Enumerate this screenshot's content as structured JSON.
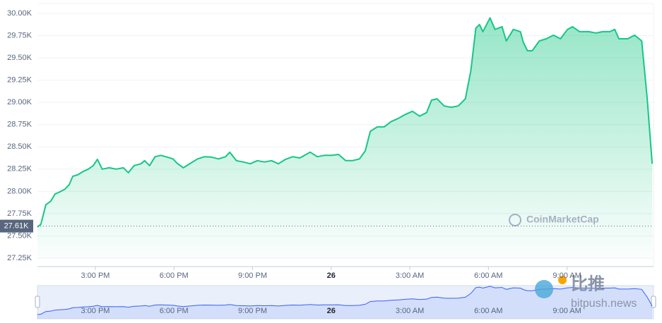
{
  "chart_data": {
    "type": "area",
    "color": "#16c784",
    "navigator_color": "#3861fb",
    "grid": true,
    "xlim": [
      12.79,
      36.3
    ],
    "ylim": [
      27250,
      30000
    ],
    "yticks": [
      {
        "value": 27250,
        "label": "27.25K"
      },
      {
        "value": 27500,
        "label": "27.50K"
      },
      {
        "value": 27750,
        "label": "27.75K"
      },
      {
        "value": 28000,
        "label": "28.00K"
      },
      {
        "value": 28250,
        "label": "28.25K"
      },
      {
        "value": 28500,
        "label": "28.50K"
      },
      {
        "value": 28750,
        "label": "28.75K"
      },
      {
        "value": 29000,
        "label": "29.00K"
      },
      {
        "value": 29250,
        "label": "29.25K"
      },
      {
        "value": 29500,
        "label": "29.50K"
      },
      {
        "value": 29750,
        "label": "29.75K"
      },
      {
        "value": 30000,
        "label": "30.00K"
      }
    ],
    "xticks": [
      {
        "value": 15,
        "label": "3:00 PM"
      },
      {
        "value": 18,
        "label": "6:00 PM"
      },
      {
        "value": 21,
        "label": "9:00 PM"
      },
      {
        "value": 24,
        "label": "26"
      },
      {
        "value": 27,
        "label": "3:00 AM"
      },
      {
        "value": 30,
        "label": "6:00 AM"
      },
      {
        "value": 33,
        "label": "9:00 AM"
      }
    ],
    "reference_line": {
      "value": 27610,
      "label": "27.61K"
    },
    "x": [
      12.79,
      12.92,
      13.11,
      13.3,
      13.46,
      13.65,
      13.84,
      14.0,
      14.14,
      14.32,
      14.54,
      14.73,
      14.92,
      15.08,
      15.26,
      15.53,
      15.8,
      16.07,
      16.26,
      16.48,
      16.74,
      16.88,
      17.07,
      17.28,
      17.5,
      17.69,
      17.96,
      18.14,
      18.36,
      18.57,
      18.9,
      19.17,
      19.43,
      19.7,
      19.97,
      20.13,
      20.38,
      20.64,
      20.91,
      21.18,
      21.45,
      21.72,
      21.99,
      22.26,
      22.53,
      22.8,
      23.2,
      23.47,
      23.74,
      24.01,
      24.28,
      24.55,
      24.81,
      25.08,
      25.3,
      25.49,
      25.76,
      26.02,
      26.29,
      26.56,
      26.83,
      27.1,
      27.37,
      27.64,
      27.83,
      28.04,
      28.31,
      28.58,
      28.85,
      29.12,
      29.33,
      29.52,
      29.66,
      29.79,
      30.06,
      30.25,
      30.52,
      30.68,
      30.95,
      31.22,
      31.33,
      31.49,
      31.67,
      31.94,
      32.21,
      32.48,
      32.75,
      33.02,
      33.21,
      33.48,
      33.83,
      34.1,
      34.36,
      34.63,
      34.82,
      34.98,
      35.31,
      35.58,
      35.85,
      36.06,
      36.25
    ],
    "values": [
      27600,
      27630,
      27850,
      27890,
      27970,
      27995,
      28025,
      28075,
      28170,
      28185,
      28225,
      28250,
      28290,
      28360,
      28250,
      28265,
      28250,
      28265,
      28210,
      28290,
      28310,
      28345,
      28290,
      28390,
      28405,
      28390,
      28365,
      28310,
      28265,
      28305,
      28365,
      28390,
      28385,
      28365,
      28390,
      28440,
      28345,
      28330,
      28310,
      28345,
      28330,
      28345,
      28310,
      28360,
      28390,
      28375,
      28440,
      28390,
      28405,
      28405,
      28415,
      28345,
      28345,
      28365,
      28455,
      28675,
      28725,
      28725,
      28785,
      28820,
      28865,
      28900,
      28845,
      28885,
      29025,
      29040,
      28960,
      28945,
      28960,
      29040,
      29360,
      29835,
      29875,
      29795,
      29950,
      29820,
      29850,
      29690,
      29820,
      29795,
      29675,
      29580,
      29580,
      29690,
      29715,
      29755,
      29715,
      29820,
      29850,
      29795,
      29795,
      29780,
      29795,
      29795,
      29820,
      29715,
      29715,
      29755,
      29690,
      29040,
      28310
    ],
    "watermarks": [
      "CoinMarketCap",
      "比推",
      "bitpush.news"
    ]
  }
}
